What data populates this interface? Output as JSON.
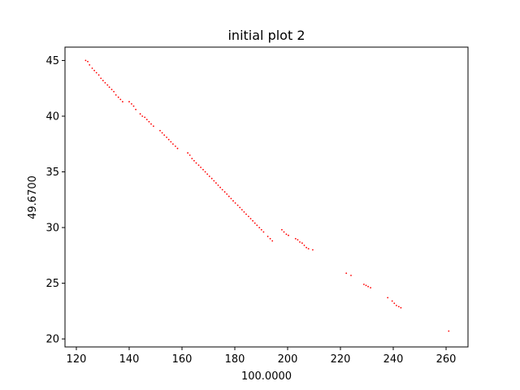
{
  "chart_data": {
    "type": "scatter",
    "title": "initial plot 2",
    "xlabel": "100.0000",
    "ylabel": "49.6700",
    "xlim": [
      115.7,
      268.3
    ],
    "ylim": [
      19.28,
      46.2
    ],
    "xticks": [
      120,
      140,
      160,
      180,
      200,
      220,
      240,
      260
    ],
    "yticks": [
      20,
      25,
      30,
      35,
      40,
      45
    ],
    "grid": false,
    "legend": "none",
    "marker_color": "#ff0000",
    "series": [
      {
        "x": [
          123.5,
          124.3,
          125.0,
          126.0,
          126.8,
          127.6,
          128.5,
          129.3,
          130.1,
          130.9,
          131.8,
          132.5,
          133.4,
          134.2,
          135.0,
          135.9,
          136.7,
          137.5,
          140.0,
          140.9,
          141.7,
          142.5,
          144.2,
          145.0,
          145.9,
          146.7,
          147.5,
          148.3,
          149.2,
          151.7,
          152.5,
          153.3,
          154.2,
          155.0,
          155.8,
          156.6,
          157.5,
          158.3,
          162.2,
          163.0,
          163.8,
          164.6,
          165.4,
          166.3,
          167.1,
          168.0,
          168.8,
          169.6,
          170.4,
          171.3,
          172.1,
          172.9,
          173.7,
          174.5,
          175.3,
          176.2,
          177.0,
          177.8,
          178.6,
          179.4,
          180.2,
          181.1,
          181.9,
          182.7,
          183.5,
          184.3,
          185.2,
          186.0,
          186.8,
          187.6,
          188.4,
          189.3,
          190.1,
          190.9,
          192.5,
          193.4,
          194.2,
          197.8,
          198.6,
          199.5,
          200.3,
          203.0,
          203.8,
          204.6,
          205.5,
          206.3,
          207.1,
          207.9,
          209.5,
          222.2,
          224.0,
          228.9,
          229.7,
          230.5,
          231.4,
          237.9,
          239.6,
          240.4,
          241.2,
          242.1,
          242.9,
          261.0
        ],
        "y": [
          45.0,
          44.9,
          44.6,
          44.3,
          44.1,
          43.9,
          43.7,
          43.4,
          43.2,
          43.0,
          42.8,
          42.6,
          42.4,
          42.2,
          41.9,
          41.7,
          41.5,
          41.3,
          41.3,
          41.1,
          40.9,
          40.6,
          40.2,
          40.0,
          39.9,
          39.7,
          39.5,
          39.3,
          39.1,
          38.7,
          38.5,
          38.3,
          38.1,
          37.9,
          37.7,
          37.5,
          37.3,
          37.1,
          36.7,
          36.5,
          36.2,
          36.0,
          35.8,
          35.6,
          35.4,
          35.2,
          35.0,
          34.8,
          34.6,
          34.4,
          34.2,
          34.0,
          33.8,
          33.6,
          33.4,
          33.2,
          33.0,
          32.8,
          32.6,
          32.4,
          32.2,
          32.0,
          31.8,
          31.6,
          31.4,
          31.2,
          31.0,
          30.8,
          30.6,
          30.4,
          30.2,
          30.0,
          29.8,
          29.6,
          29.2,
          29.0,
          28.8,
          29.8,
          29.6,
          29.4,
          29.3,
          29.0,
          28.9,
          28.7,
          28.6,
          28.4,
          28.2,
          28.1,
          28.0,
          25.9,
          25.7,
          24.9,
          24.8,
          24.7,
          24.6,
          23.7,
          23.4,
          23.2,
          23.0,
          22.9,
          22.8,
          20.7
        ]
      }
    ]
  }
}
